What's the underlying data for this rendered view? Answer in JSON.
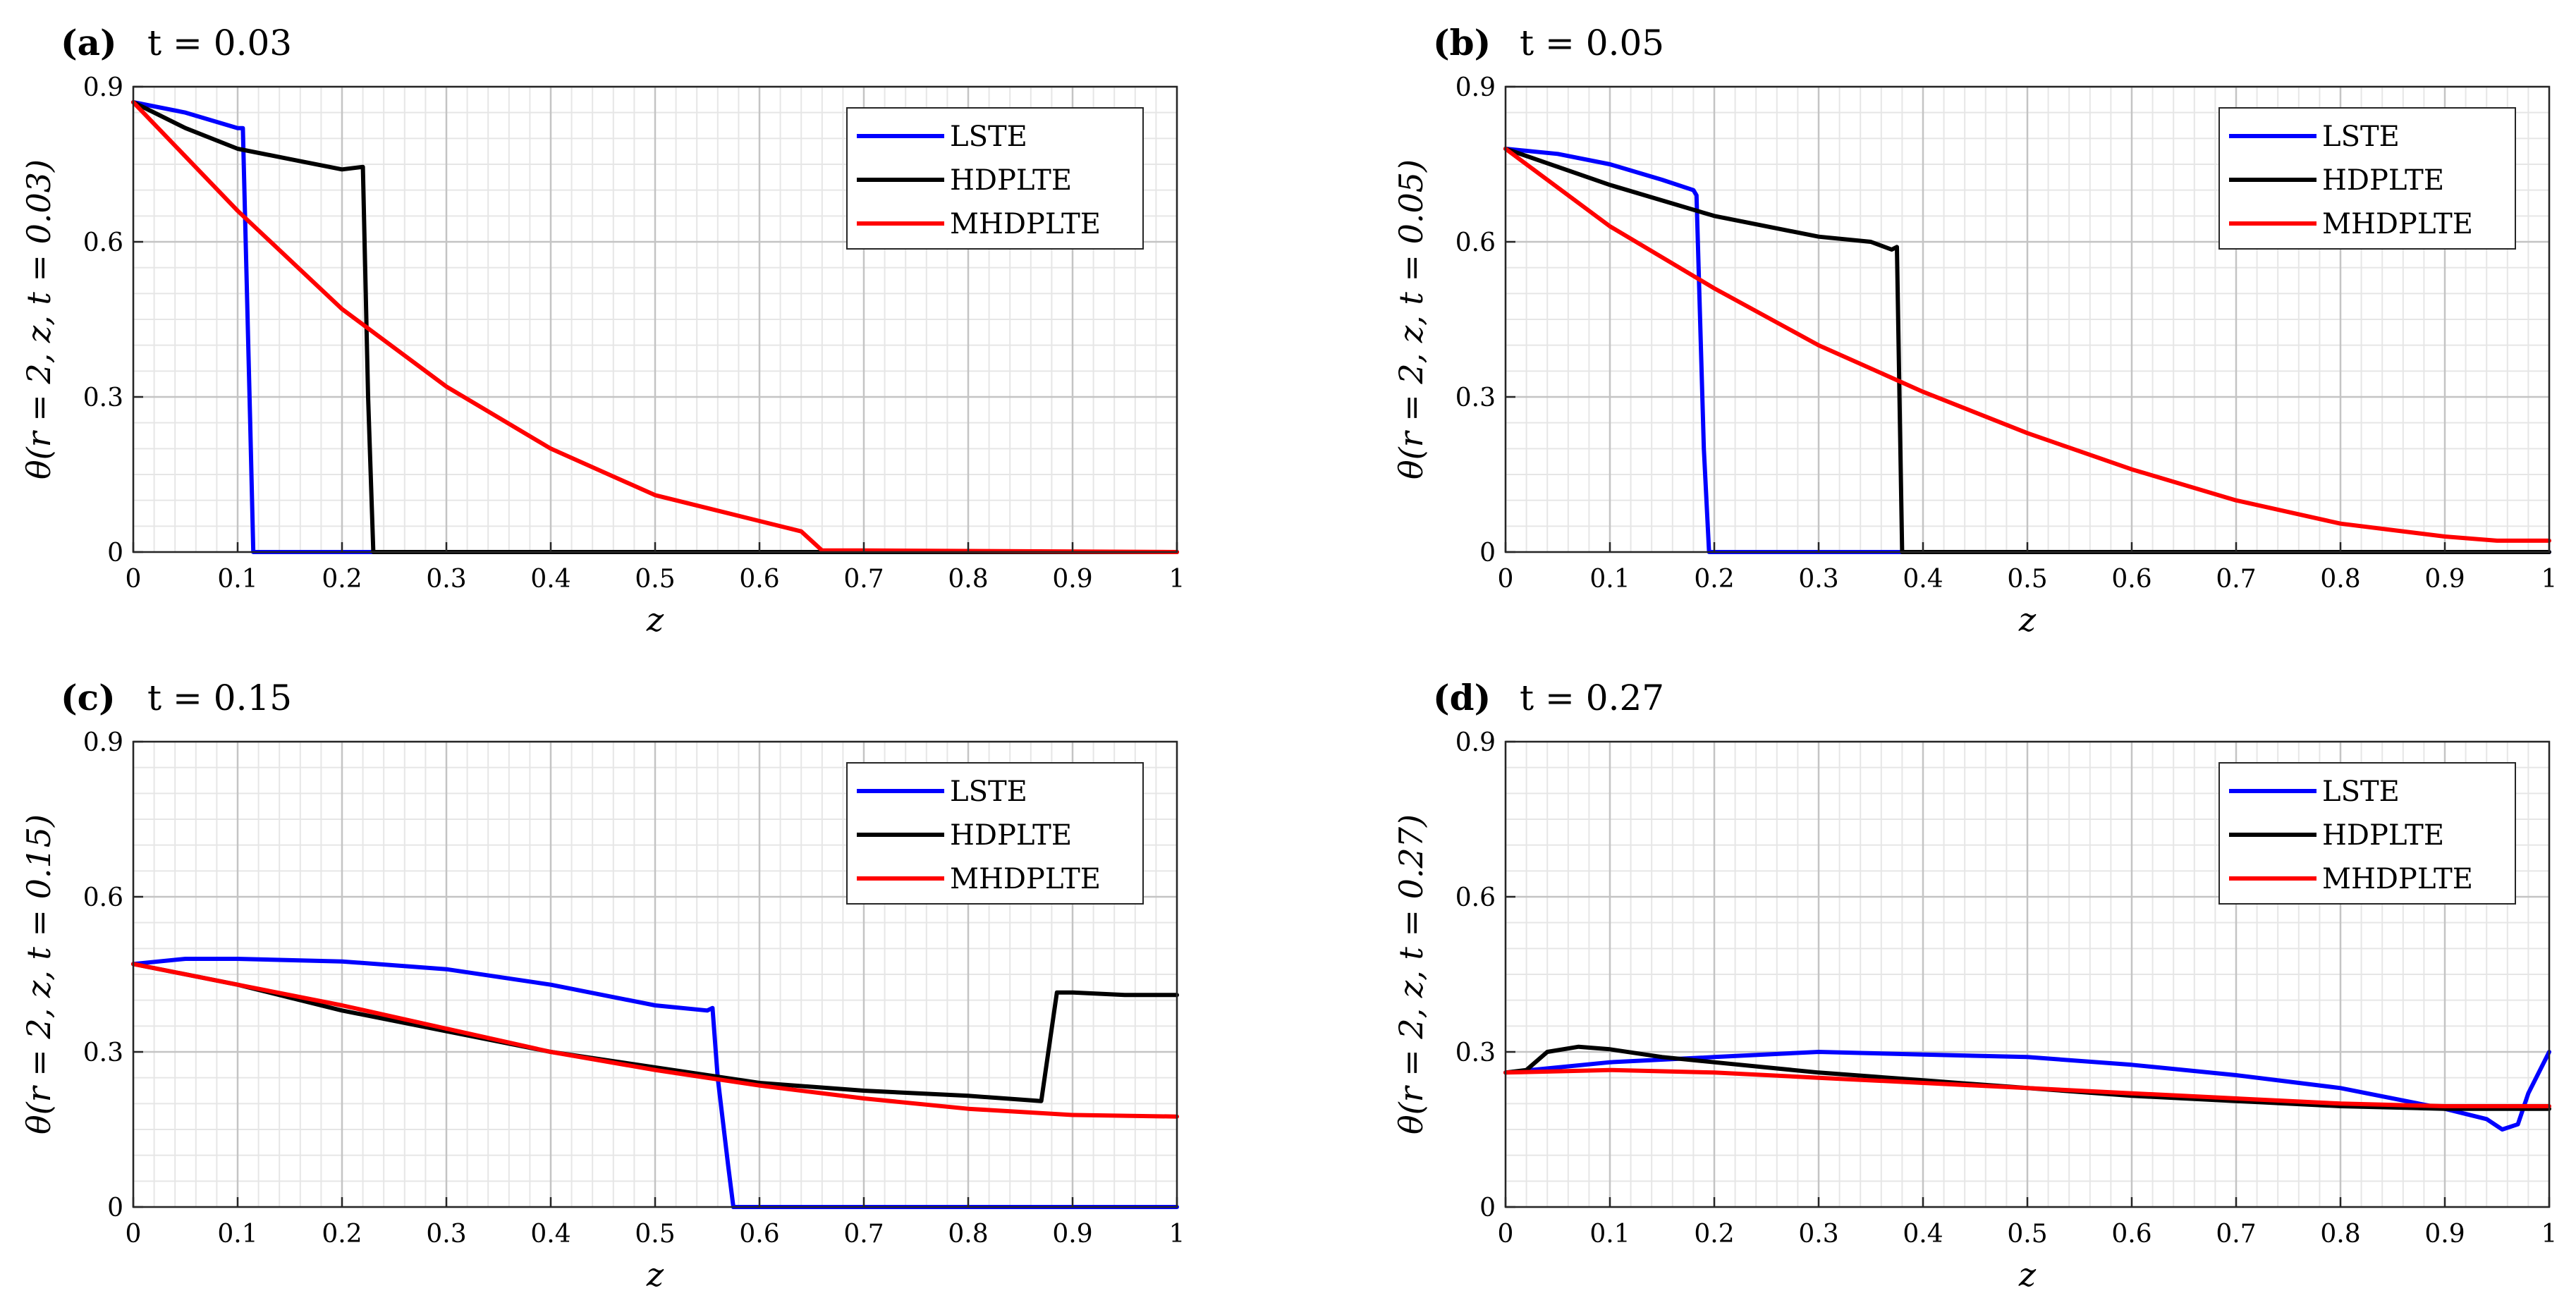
{
  "colors": {
    "LSTE": "#0000ff",
    "HDPLTE": "#000000",
    "MHDPLTE": "#ff0000"
  },
  "chart_data": [
    {
      "type": "line",
      "panel": "(a)",
      "title": "t = 0.03",
      "xlabel": "z",
      "ylabel": "θ(r = 2, z, t = 0.03)",
      "xlim": [
        0,
        1
      ],
      "ylim": [
        0,
        0.9
      ],
      "xticks": [
        "0",
        "0.1",
        "0.2",
        "0.3",
        "0.4",
        "0.5",
        "0.6",
        "0.7",
        "0.8",
        "0.9",
        "1"
      ],
      "yticks": [
        "0",
        "0.3",
        "0.6",
        "0.9"
      ],
      "grid": true,
      "minor_grid": true,
      "legend": "top-right",
      "series": [
        {
          "name": "LSTE",
          "x": [
            0,
            0.05,
            0.1,
            0.105,
            0.112,
            0.115,
            1
          ],
          "y": [
            0.87,
            0.85,
            0.82,
            0.82,
            0.25,
            0,
            0
          ]
        },
        {
          "name": "HDPLTE",
          "x": [
            0,
            0.05,
            0.1,
            0.15,
            0.2,
            0.22,
            0.225,
            0.23,
            1
          ],
          "y": [
            0.87,
            0.82,
            0.78,
            0.76,
            0.74,
            0.745,
            0.3,
            0,
            0
          ]
        },
        {
          "name": "MHDPLTE",
          "x": [
            0,
            0.1,
            0.2,
            0.3,
            0.4,
            0.5,
            0.6,
            0.64,
            0.66,
            0.7,
            1
          ],
          "y": [
            0.87,
            0.66,
            0.47,
            0.32,
            0.2,
            0.11,
            0.06,
            0.04,
            0.003,
            0.003,
            0
          ]
        }
      ]
    },
    {
      "type": "line",
      "panel": "(b)",
      "title": "t = 0.05",
      "xlabel": "z",
      "ylabel": "θ(r = 2, z, t = 0.05)",
      "xlim": [
        0,
        1
      ],
      "ylim": [
        0,
        0.9
      ],
      "xticks": [
        "0",
        "0.1",
        "0.2",
        "0.3",
        "0.4",
        "0.5",
        "0.6",
        "0.7",
        "0.8",
        "0.9",
        "1"
      ],
      "yticks": [
        "0",
        "0.3",
        "0.6",
        "0.9"
      ],
      "grid": true,
      "minor_grid": true,
      "legend": "top-right",
      "series": [
        {
          "name": "LSTE",
          "x": [
            0,
            0.05,
            0.1,
            0.15,
            0.18,
            0.183,
            0.19,
            0.195,
            1
          ],
          "y": [
            0.78,
            0.77,
            0.75,
            0.72,
            0.7,
            0.69,
            0.2,
            0,
            0
          ]
        },
        {
          "name": "HDPLTE",
          "x": [
            0,
            0.1,
            0.2,
            0.3,
            0.35,
            0.37,
            0.375,
            0.38,
            1
          ],
          "y": [
            0.78,
            0.71,
            0.65,
            0.61,
            0.6,
            0.585,
            0.59,
            0,
            0
          ]
        },
        {
          "name": "MHDPLTE",
          "x": [
            0,
            0.1,
            0.2,
            0.3,
            0.4,
            0.5,
            0.6,
            0.7,
            0.8,
            0.9,
            0.95,
            1
          ],
          "y": [
            0.78,
            0.63,
            0.51,
            0.4,
            0.31,
            0.23,
            0.16,
            0.1,
            0.055,
            0.03,
            0.022,
            0.022
          ]
        }
      ]
    },
    {
      "type": "line",
      "panel": "(c)",
      "title": "t = 0.15",
      "xlabel": "z",
      "ylabel": "θ(r = 2, z, t = 0.15)",
      "xlim": [
        0,
        1
      ],
      "ylim": [
        0,
        0.9
      ],
      "xticks": [
        "0",
        "0.1",
        "0.2",
        "0.3",
        "0.4",
        "0.5",
        "0.6",
        "0.7",
        "0.8",
        "0.9",
        "1"
      ],
      "yticks": [
        "0",
        "0.3",
        "0.6",
        "0.9"
      ],
      "grid": true,
      "minor_grid": true,
      "legend": "top-right",
      "series": [
        {
          "name": "LSTE",
          "x": [
            0,
            0.05,
            0.1,
            0.2,
            0.3,
            0.4,
            0.5,
            0.55,
            0.555,
            0.56,
            0.57,
            0.575,
            0.6,
            1
          ],
          "y": [
            0.47,
            0.48,
            0.48,
            0.475,
            0.46,
            0.43,
            0.39,
            0.38,
            0.385,
            0.25,
            0.08,
            0,
            0,
            0
          ]
        },
        {
          "name": "HDPLTE",
          "x": [
            0,
            0.1,
            0.2,
            0.3,
            0.4,
            0.5,
            0.6,
            0.7,
            0.8,
            0.87,
            0.885,
            0.9,
            0.95,
            1
          ],
          "y": [
            0.47,
            0.43,
            0.38,
            0.34,
            0.3,
            0.27,
            0.24,
            0.225,
            0.215,
            0.205,
            0.415,
            0.415,
            0.41,
            0.41
          ]
        },
        {
          "name": "MHDPLTE",
          "x": [
            0,
            0.1,
            0.2,
            0.3,
            0.4,
            0.5,
            0.6,
            0.7,
            0.8,
            0.9,
            1
          ],
          "y": [
            0.47,
            0.43,
            0.39,
            0.345,
            0.3,
            0.265,
            0.235,
            0.21,
            0.19,
            0.178,
            0.175
          ]
        }
      ]
    },
    {
      "type": "line",
      "panel": "(d)",
      "title": "t = 0.27",
      "xlabel": "z",
      "ylabel": "θ(r = 2, z, t = 0.27)",
      "xlim": [
        0,
        1
      ],
      "ylim": [
        0,
        0.9
      ],
      "xticks": [
        "0",
        "0.1",
        "0.2",
        "0.3",
        "0.4",
        "0.5",
        "0.6",
        "0.7",
        "0.8",
        "0.9",
        "1"
      ],
      "yticks": [
        "0",
        "0.3",
        "0.6",
        "0.9"
      ],
      "grid": true,
      "minor_grid": true,
      "legend": "top-right",
      "series": [
        {
          "name": "LSTE",
          "x": [
            0,
            0.1,
            0.2,
            0.3,
            0.4,
            0.5,
            0.6,
            0.7,
            0.8,
            0.9,
            0.94,
            0.955,
            0.97,
            0.98,
            1
          ],
          "y": [
            0.26,
            0.28,
            0.29,
            0.3,
            0.295,
            0.29,
            0.275,
            0.255,
            0.23,
            0.19,
            0.17,
            0.15,
            0.16,
            0.22,
            0.3
          ]
        },
        {
          "name": "HDPLTE",
          "x": [
            0,
            0.02,
            0.04,
            0.07,
            0.1,
            0.15,
            0.2,
            0.3,
            0.4,
            0.5,
            0.6,
            0.7,
            0.8,
            0.9,
            1
          ],
          "y": [
            0.26,
            0.265,
            0.3,
            0.31,
            0.305,
            0.29,
            0.28,
            0.26,
            0.245,
            0.23,
            0.215,
            0.205,
            0.195,
            0.19,
            0.19
          ]
        },
        {
          "name": "MHDPLTE",
          "x": [
            0,
            0.1,
            0.2,
            0.3,
            0.4,
            0.5,
            0.6,
            0.7,
            0.8,
            0.9,
            1
          ],
          "y": [
            0.26,
            0.265,
            0.26,
            0.25,
            0.24,
            0.23,
            0.22,
            0.21,
            0.2,
            0.195,
            0.195
          ]
        }
      ]
    }
  ]
}
